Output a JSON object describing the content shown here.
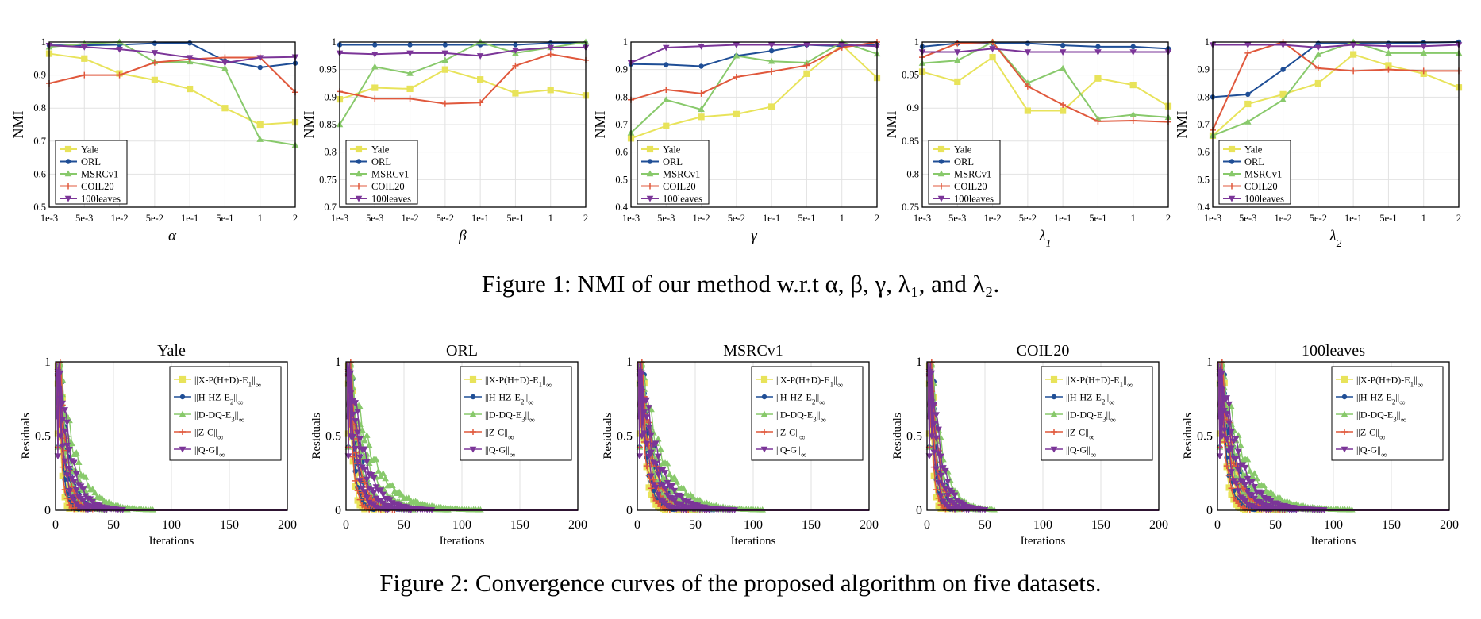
{
  "captions": {
    "figure1": "Figure 1: NMI of our method w.r.t α, β, γ, λ₁, and λ₂.",
    "figure2": "Figure 2: Convergence curves of the proposed algorithm on five datasets."
  },
  "colors": {
    "Yale": "#e8e35a",
    "ORL": "#1f4e96",
    "MSRCv1": "#88c96b",
    "COIL20": "#e0583c",
    "100leaves": "#7b3598"
  },
  "chart_data": [
    {
      "type": "line",
      "figure": 1,
      "xlabel": "α",
      "ylabel": "NMI",
      "categories": [
        "1e-3",
        "5e-3",
        "1e-2",
        "5e-2",
        "1e-1",
        "5e-1",
        "1",
        "2"
      ],
      "ylim": [
        0.5,
        1
      ],
      "yticks": [
        "0.5",
        "0.6",
        "0.7",
        "0.8",
        "0.9",
        "1"
      ],
      "grid": true,
      "legend": "bottom-left",
      "series": [
        {
          "name": "Yale",
          "marker": "square",
          "values": [
            0.965,
            0.95,
            0.905,
            0.885,
            0.858,
            0.8,
            0.75,
            0.757
          ]
        },
        {
          "name": "ORL",
          "marker": "circle",
          "values": [
            0.99,
            0.99,
            0.992,
            0.996,
            0.997,
            0.943,
            0.923,
            0.936
          ]
        },
        {
          "name": "MSRCv1",
          "marker": "triangle-up",
          "values": [
            0.985,
            0.995,
            1.0,
            0.94,
            0.94,
            0.92,
            0.705,
            0.688
          ]
        },
        {
          "name": "COIL20",
          "marker": "plus",
          "values": [
            0.875,
            0.9,
            0.9,
            0.938,
            0.948,
            0.953,
            0.953,
            0.848
          ]
        },
        {
          "name": "100leaves",
          "marker": "triangle-down",
          "values": [
            0.99,
            0.985,
            0.978,
            0.968,
            0.953,
            0.937,
            0.953,
            0.955
          ]
        }
      ]
    },
    {
      "type": "line",
      "figure": 1,
      "xlabel": "β",
      "ylabel": "NMI",
      "categories": [
        "1e-3",
        "5e-3",
        "1e-2",
        "5e-2",
        "1e-1",
        "5e-1",
        "1",
        "2"
      ],
      "ylim": [
        0.7,
        1
      ],
      "yticks": [
        "0.7",
        "0.75",
        "0.8",
        "0.85",
        "0.9",
        "0.95",
        "1"
      ],
      "grid": true,
      "legend": "bottom-left",
      "series": [
        {
          "name": "Yale",
          "marker": "square",
          "values": [
            0.896,
            0.917,
            0.915,
            0.95,
            0.932,
            0.907,
            0.913,
            0.903
          ]
        },
        {
          "name": "ORL",
          "marker": "circle",
          "values": [
            0.995,
            0.995,
            0.995,
            0.995,
            0.995,
            0.995,
            0.998,
            0.998
          ]
        },
        {
          "name": "MSRCv1",
          "marker": "triangle-up",
          "values": [
            0.85,
            0.955,
            0.943,
            0.967,
            1.0,
            0.98,
            0.99,
            1.0
          ]
        },
        {
          "name": "COIL20",
          "marker": "plus",
          "values": [
            0.91,
            0.897,
            0.897,
            0.888,
            0.89,
            0.957,
            0.978,
            0.967
          ]
        },
        {
          "name": "100leaves",
          "marker": "triangle-down",
          "values": [
            0.98,
            0.978,
            0.98,
            0.98,
            0.975,
            0.985,
            0.99,
            0.99
          ]
        }
      ]
    },
    {
      "type": "line",
      "figure": 1,
      "xlabel": "γ",
      "ylabel": "NMI",
      "categories": [
        "1e-3",
        "5e-3",
        "1e-2",
        "5e-2",
        "1e-1",
        "5e-1",
        "1",
        "2"
      ],
      "ylim": [
        0.4,
        1
      ],
      "yticks": [
        "0.4",
        "0.5",
        "0.6",
        "0.7",
        "0.8",
        "0.9",
        "1"
      ],
      "grid": true,
      "legend": "bottom-left",
      "series": [
        {
          "name": "Yale",
          "marker": "square",
          "values": [
            0.65,
            0.695,
            0.728,
            0.738,
            0.765,
            0.885,
            0.99,
            0.87
          ]
        },
        {
          "name": "ORL",
          "marker": "circle",
          "values": [
            0.92,
            0.918,
            0.912,
            0.95,
            0.968,
            0.99,
            0.985,
            0.99
          ]
        },
        {
          "name": "MSRCv1",
          "marker": "triangle-up",
          "values": [
            0.67,
            0.79,
            0.755,
            0.95,
            0.93,
            0.925,
            1.0,
            0.957
          ]
        },
        {
          "name": "COIL20",
          "marker": "plus",
          "values": [
            0.79,
            0.827,
            0.813,
            0.873,
            0.893,
            0.915,
            0.98,
            1.0
          ]
        },
        {
          "name": "100leaves",
          "marker": "triangle-down",
          "values": [
            0.925,
            0.98,
            0.985,
            0.99,
            0.99,
            0.99,
            0.99,
            0.985
          ]
        }
      ]
    },
    {
      "type": "line",
      "figure": 1,
      "xlabel": "λ1",
      "ylabel": "NMI",
      "categories": [
        "1e-3",
        "5e-3",
        "1e-2",
        "5e-2",
        "1e-1",
        "5e-1",
        "1",
        "2"
      ],
      "ylim": [
        0.75,
        1
      ],
      "yticks": [
        "0.75",
        "0.8",
        "0.85",
        "0.9",
        "0.95",
        "1"
      ],
      "grid": true,
      "legend": "bottom-left",
      "series": [
        {
          "name": "Yale",
          "marker": "square",
          "values": [
            0.955,
            0.94,
            0.977,
            0.896,
            0.896,
            0.945,
            0.935,
            0.903
          ]
        },
        {
          "name": "ORL",
          "marker": "circle",
          "values": [
            0.993,
            0.998,
            0.998,
            0.998,
            0.995,
            0.993,
            0.993,
            0.99
          ]
        },
        {
          "name": "MSRCv1",
          "marker": "triangle-up",
          "values": [
            0.968,
            0.972,
            1.0,
            0.938,
            0.96,
            0.884,
            0.89,
            0.886
          ]
        },
        {
          "name": "COIL20",
          "marker": "plus",
          "values": [
            0.977,
            0.998,
            1.0,
            0.933,
            0.905,
            0.88,
            0.881,
            0.879
          ]
        },
        {
          "name": "100leaves",
          "marker": "triangle-down",
          "values": [
            0.985,
            0.985,
            0.99,
            0.985,
            0.985,
            0.985,
            0.985,
            0.985
          ]
        }
      ]
    },
    {
      "type": "line",
      "figure": 1,
      "xlabel": "λ2",
      "ylabel": "NMI",
      "categories": [
        "1e-3",
        "5e-3",
        "1e-2",
        "5e-2",
        "1e-1",
        "5e-1",
        "1",
        "2"
      ],
      "ylim": [
        0.4,
        1
      ],
      "yticks": [
        "0.4",
        "0.5",
        "0.6",
        "0.7",
        "0.8",
        "0.9",
        "1"
      ],
      "grid": true,
      "legend": "bottom-left",
      "series": [
        {
          "name": "Yale",
          "marker": "square",
          "values": [
            0.66,
            0.775,
            0.81,
            0.85,
            0.955,
            0.915,
            0.885,
            0.835
          ]
        },
        {
          "name": "ORL",
          "marker": "circle",
          "values": [
            0.8,
            0.81,
            0.9,
            0.995,
            0.995,
            0.995,
            0.998,
            1.0
          ]
        },
        {
          "name": "MSRCv1",
          "marker": "triangle-up",
          "values": [
            0.66,
            0.71,
            0.79,
            0.955,
            1.0,
            0.96,
            0.96,
            0.96
          ]
        },
        {
          "name": "COIL20",
          "marker": "plus",
          "values": [
            0.68,
            0.96,
            1.0,
            0.905,
            0.895,
            0.9,
            0.895,
            0.895
          ]
        },
        {
          "name": "100leaves",
          "marker": "triangle-down",
          "values": [
            0.99,
            0.99,
            0.99,
            0.98,
            0.99,
            0.985,
            0.985,
            0.99
          ]
        }
      ]
    },
    {
      "type": "line",
      "figure": 2,
      "title": "Yale",
      "xlabel": "Iterations",
      "ylabel": "Residuals",
      "xlim": [
        0,
        200
      ],
      "xticks": [
        0,
        50,
        100,
        150,
        200
      ],
      "ylim": [
        0,
        1
      ],
      "yticks": [
        0,
        0.5,
        1
      ],
      "grid": true,
      "legend": "top-right",
      "series": [
        {
          "name": "||X-P(H+D)-E1||∞",
          "marker": "square",
          "decay": 3
        },
        {
          "name": "||H-HZ-E2||∞",
          "marker": "circle",
          "decay": 5
        },
        {
          "name": "||D-DQ-E3||∞",
          "marker": "triangle-up",
          "decay": 10
        },
        {
          "name": "||Z-C||∞",
          "marker": "plus",
          "decay": 4
        },
        {
          "name": "||Q-G||∞",
          "marker": "triangle-down",
          "decay": 7
        }
      ]
    },
    {
      "type": "line",
      "figure": 2,
      "title": "ORL",
      "xlabel": "Iterations",
      "ylabel": "Residuals",
      "xlim": [
        0,
        200
      ],
      "xticks": [
        0,
        50,
        100,
        150,
        200
      ],
      "ylim": [
        0,
        1
      ],
      "yticks": [
        0,
        0.5,
        1
      ],
      "grid": true,
      "legend": "top-right",
      "series": [
        {
          "name": "||X-P(H+D)-E1||∞",
          "marker": "square",
          "decay": 4
        },
        {
          "name": "||H-HZ-E2||∞",
          "marker": "circle",
          "decay": 6
        },
        {
          "name": "||D-DQ-E3||∞",
          "marker": "triangle-up",
          "decay": 14
        },
        {
          "name": "||Z-C||∞",
          "marker": "plus",
          "decay": 5
        },
        {
          "name": "||Q-G||∞",
          "marker": "triangle-down",
          "decay": 9
        }
      ]
    },
    {
      "type": "line",
      "figure": 2,
      "title": "MSRCv1",
      "xlabel": "Iterations",
      "ylabel": "Residuals",
      "xlim": [
        0,
        200
      ],
      "xticks": [
        0,
        50,
        100,
        150,
        200
      ],
      "ylim": [
        0,
        1
      ],
      "yticks": [
        0,
        0.5,
        1
      ],
      "grid": true,
      "legend": "top-right",
      "series": [
        {
          "name": "||X-P(H+D)-E1||∞",
          "marker": "square",
          "decay": 6
        },
        {
          "name": "||H-HZ-E2||∞",
          "marker": "circle",
          "decay": 8
        },
        {
          "name": "||D-DQ-E3||∞",
          "marker": "triangle-up",
          "decay": 13
        },
        {
          "name": "||Z-C||∞",
          "marker": "plus",
          "decay": 7
        },
        {
          "name": "||Q-G||∞",
          "marker": "triangle-down",
          "decay": 10
        }
      ]
    },
    {
      "type": "line",
      "figure": 2,
      "title": "COIL20",
      "xlabel": "Iterations",
      "ylabel": "Residuals",
      "xlim": [
        0,
        200
      ],
      "xticks": [
        0,
        50,
        100,
        150,
        200
      ],
      "ylim": [
        0,
        1
      ],
      "yticks": [
        0,
        0.5,
        1
      ],
      "grid": true,
      "legend": "top-right",
      "series": [
        {
          "name": "||X-P(H+D)-E1||∞",
          "marker": "square",
          "decay": 3
        },
        {
          "name": "||H-HZ-E2||∞",
          "marker": "circle",
          "decay": 5
        },
        {
          "name": "||D-DQ-E3||∞",
          "marker": "triangle-up",
          "decay": 7
        },
        {
          "name": "||Z-C||∞",
          "marker": "plus",
          "decay": 4
        },
        {
          "name": "||Q-G||∞",
          "marker": "triangle-down",
          "decay": 6
        }
      ]
    },
    {
      "type": "line",
      "figure": 2,
      "title": "100leaves",
      "xlabel": "Iterations",
      "ylabel": "Residuals",
      "xlim": [
        0,
        200
      ],
      "xticks": [
        0,
        50,
        100,
        150,
        200
      ],
      "ylim": [
        0,
        1
      ],
      "yticks": [
        0,
        0.5,
        1
      ],
      "grid": true,
      "legend": "top-right",
      "series": [
        {
          "name": "||X-P(H+D)-E1||∞",
          "marker": "square",
          "decay": 6
        },
        {
          "name": "||H-HZ-E2||∞",
          "marker": "circle",
          "decay": 8
        },
        {
          "name": "||D-DQ-E3||∞",
          "marker": "triangle-up",
          "decay": 14
        },
        {
          "name": "||Z-C||∞",
          "marker": "plus",
          "decay": 7
        },
        {
          "name": "||Q-G||∞",
          "marker": "triangle-down",
          "decay": 11
        }
      ]
    }
  ]
}
